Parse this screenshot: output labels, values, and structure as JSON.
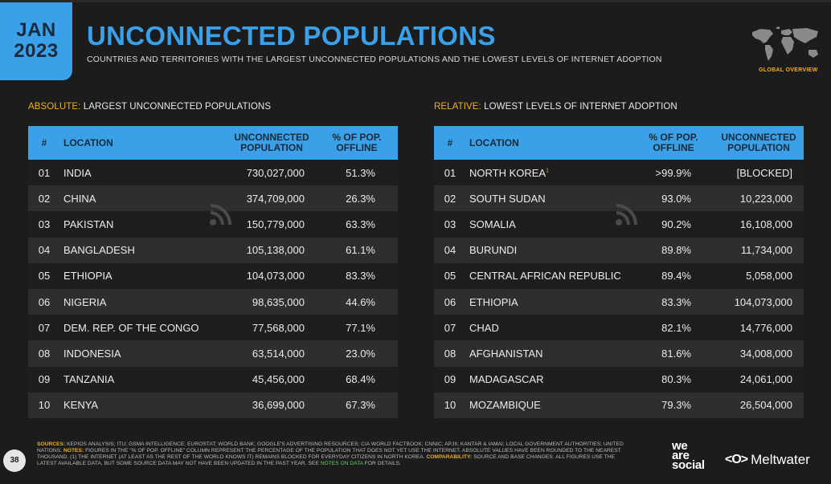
{
  "header": {
    "month": "JAN",
    "year": "2023",
    "title": "UNCONNECTED POPULATIONS",
    "subtitle": "COUNTRIES AND TERRITORIES WITH THE LARGEST UNCONNECTED POPULATIONS AND THE LOWEST LEVELS OF INTERNET ADOPTION",
    "tag": "GLOBAL OVERVIEW"
  },
  "left": {
    "heading_accent": "ABSOLUTE:",
    "heading_text": "LARGEST UNCONNECTED POPULATIONS",
    "columns": [
      "#",
      "LOCATION",
      "UNCONNECTED POPULATION",
      "% OF POP. OFFLINE"
    ],
    "rows": [
      {
        "rank": "01",
        "location": "INDIA",
        "population": "730,027,000",
        "pct": "51.3%"
      },
      {
        "rank": "02",
        "location": "CHINA",
        "population": "374,709,000",
        "pct": "26.3%"
      },
      {
        "rank": "03",
        "location": "PAKISTAN",
        "population": "150,779,000",
        "pct": "63.3%"
      },
      {
        "rank": "04",
        "location": "BANGLADESH",
        "population": "105,138,000",
        "pct": "61.1%"
      },
      {
        "rank": "05",
        "location": "ETHIOPIA",
        "population": "104,073,000",
        "pct": "83.3%"
      },
      {
        "rank": "06",
        "location": "NIGERIA",
        "population": "98,635,000",
        "pct": "44.6%"
      },
      {
        "rank": "07",
        "location": "DEM. REP. OF THE CONGO",
        "population": "77,568,000",
        "pct": "77.1%"
      },
      {
        "rank": "08",
        "location": "INDONESIA",
        "population": "63,514,000",
        "pct": "23.0%"
      },
      {
        "rank": "09",
        "location": "TANZANIA",
        "population": "45,456,000",
        "pct": "68.4%"
      },
      {
        "rank": "10",
        "location": "KENYA",
        "population": "36,699,000",
        "pct": "67.3%"
      }
    ]
  },
  "right": {
    "heading_accent": "RELATIVE:",
    "heading_text": "LOWEST LEVELS OF INTERNET ADOPTION",
    "columns": [
      "#",
      "LOCATION",
      "% OF POP. OFFLINE",
      "UNCONNECTED POPULATION"
    ],
    "rows": [
      {
        "rank": "01",
        "location": "NORTH KOREA",
        "footnote": "1",
        "pct": ">99.9%",
        "population": "[BLOCKED]"
      },
      {
        "rank": "02",
        "location": "SOUTH SUDAN",
        "pct": "93.0%",
        "population": "10,223,000"
      },
      {
        "rank": "03",
        "location": "SOMALIA",
        "pct": "90.2%",
        "population": "16,108,000"
      },
      {
        "rank": "04",
        "location": "BURUNDI",
        "pct": "89.8%",
        "population": "11,734,000"
      },
      {
        "rank": "05",
        "location": "CENTRAL AFRICAN REPUBLIC",
        "pct": "89.4%",
        "population": "5,058,000"
      },
      {
        "rank": "06",
        "location": "ETHIOPIA",
        "pct": "83.3%",
        "population": "104,073,000"
      },
      {
        "rank": "07",
        "location": "CHAD",
        "pct": "82.1%",
        "population": "14,776,000"
      },
      {
        "rank": "08",
        "location": "AFGHANISTAN",
        "pct": "81.6%",
        "population": "34,008,000"
      },
      {
        "rank": "09",
        "location": "MADAGASCAR",
        "pct": "80.3%",
        "population": "24,061,000"
      },
      {
        "rank": "10",
        "location": "MOZAMBIQUE",
        "pct": "79.3%",
        "population": "26,504,000"
      }
    ]
  },
  "footer": {
    "page": "38",
    "sources_label": "SOURCES:",
    "sources_text": "KEPIOS ANALYSIS; ITU; GSMA INTELLIGENCE; EUROSTAT; WORLD BANK; GOOGLE'S ADVERTISING RESOURCES; CIA WORLD FACTBOOK; CNNIC; APJII; KANTAR & IAMAI; LOCAL GOVERNMENT AUTHORITIES; UNITED NATIONS.",
    "notes_label": "NOTES:",
    "notes_text": "FIGURES IN THE \"% OF POP. OFFLINE\" COLUMN REPRESENT THE PERCENTAGE OF THE POPULATION THAT DOES NOT YET USE THE INTERNET. ABSOLUTE VALUES HAVE BEEN ROUNDED TO THE NEAREST THOUSAND. (1) THE INTERNET (AT LEAST AS THE REST OF THE WORLD KNOWS IT) REMAINS BLOCKED FOR EVERYDAY CITIZENS IN NORTH KOREA.",
    "comparability_label": "COMPARABILITY:",
    "comparability_text": "SOURCE AND BASE CHANGES. ALL FIGURES USE THE LATEST AVAILABLE DATA, BUT SOME SOURCE DATA MAY NOT HAVE BEEN UPDATED IN THE PAST YEAR. SEE",
    "notes_link": "NOTES ON DATA",
    "end_text": "FOR DETAILS.",
    "brand1_l1": "we",
    "brand1_l2": "are",
    "brand1_l3": "social",
    "brand2_logo": "<O>",
    "brand2": "Meltwater"
  },
  "colors": {
    "accent_blue": "#3aa0e8",
    "accent_yellow": "#f2b01e",
    "background": "#1c1c1c"
  },
  "icons": [
    "world-map-icon",
    "signal-watermark-icon"
  ]
}
